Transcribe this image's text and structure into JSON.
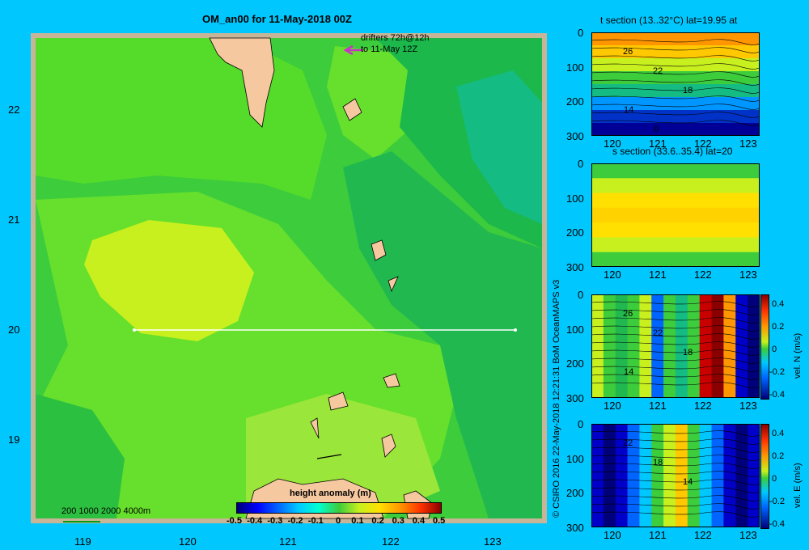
{
  "map": {
    "title": "OM_an00 for 11-May-2018 00Z",
    "drifters_line1": "drifters 72h@12h",
    "drifters_line2": "to 11-May 12Z",
    "lat_ticks": [
      "22",
      "21",
      "20",
      "19"
    ],
    "lon_ticks": [
      "119",
      "120",
      "121",
      "122",
      "123"
    ],
    "depth_legend": "200  1000  2000  4000m",
    "colorbar_title": "height anomaly  (m)",
    "colorbar_ticks": [
      "-0.5",
      "-0.4",
      "-0.3",
      "-0.2",
      "-0.1",
      "0",
      "0.1",
      "0.2",
      "0.3",
      "0.4",
      "0.5"
    ]
  },
  "credit": "© CSIRO 2016   22-May-2018 12:21:31 BoM OceanMAPS v3",
  "panels": [
    {
      "title": "t section (13..32°C) lat=19.95 at",
      "depth_ticks": [
        "0",
        "100",
        "200",
        "300"
      ],
      "lon_ticks": [
        "120",
        "121",
        "122",
        "123"
      ],
      "contours": [
        "26",
        "22",
        "18",
        "14",
        "0"
      ]
    },
    {
      "title": "s section (33.6..35.4) lat=20",
      "depth_ticks": [
        "0",
        "100",
        "200",
        "300"
      ],
      "lon_ticks": [
        "120",
        "121",
        "122",
        "123"
      ]
    },
    {
      "title": "",
      "depth_ticks": [
        "0",
        "100",
        "200",
        "300"
      ],
      "lon_ticks": [
        "120",
        "121",
        "122",
        "123"
      ],
      "cbar_label": "vel. N (m/s)",
      "cbar_ticks": [
        "0.4",
        "0.2",
        "0",
        "-0.2",
        "-0.4"
      ],
      "contours": [
        "26",
        "22",
        "18",
        "14"
      ]
    },
    {
      "title": "",
      "depth_ticks": [
        "0",
        "100",
        "200",
        "300"
      ],
      "lon_ticks": [
        "120",
        "121",
        "122",
        "123"
      ],
      "cbar_label": "vel. E (m/s)",
      "cbar_ticks": [
        "0.4",
        "0.2",
        "0",
        "-0.2",
        "-0.4"
      ],
      "contours": [
        "22",
        "18",
        "14"
      ]
    }
  ]
}
